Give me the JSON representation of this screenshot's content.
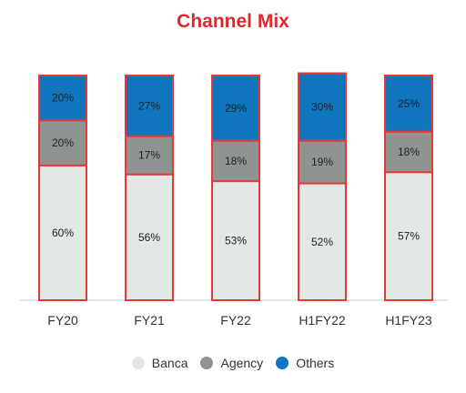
{
  "title": "Channel Mix",
  "chart_data": {
    "type": "bar",
    "stacked": true,
    "normalized_percent": true,
    "categories": [
      "FY20",
      "FY21",
      "FY22",
      "H1FY22",
      "H1FY23"
    ],
    "series": [
      {
        "name": "Banca",
        "values": [
          60,
          56,
          53,
          52,
          57
        ],
        "color": "#e3e7e6"
      },
      {
        "name": "Agency",
        "values": [
          20,
          17,
          18,
          19,
          18
        ],
        "color": "#8f9490"
      },
      {
        "name": "Others",
        "values": [
          20,
          27,
          29,
          30,
          25
        ],
        "color": "#0f75bd"
      }
    ],
    "value_suffix": "%",
    "ylim": [
      0,
      100
    ],
    "grid": false,
    "legend_position": "bottom",
    "bar_outline_color": "#e8373a"
  }
}
